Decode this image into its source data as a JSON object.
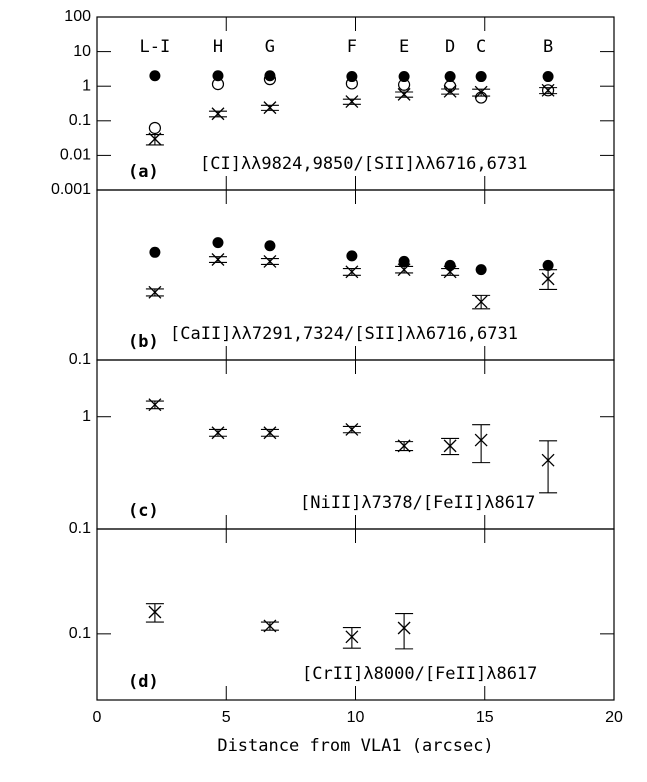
{
  "chart_data": [
    {
      "type": "scatter",
      "log_y": true,
      "xlim": [
        0,
        20
      ],
      "xticks": [
        0,
        5,
        10,
        15,
        20
      ],
      "ylim": [
        0.001,
        100
      ],
      "yticks": [
        0.001,
        0.01,
        0.1,
        1,
        10,
        100
      ],
      "panel_label": "(a)",
      "annotation": "[CI]λλ9824,9850/[SII]λλ6716,6731",
      "x": [
        2.24,
        4.68,
        6.69,
        9.86,
        11.88,
        13.66,
        14.86,
        17.45
      ],
      "point_labels": [
        "L-I",
        "H",
        "G",
        "F",
        "E",
        "D",
        "C",
        "B"
      ],
      "series": [
        {
          "marker": "filled",
          "color": "#000000",
          "values": [
            2,
            2,
            2,
            1.9,
            1.9,
            1.9,
            1.9,
            1.9
          ]
        },
        {
          "marker": "open",
          "color": "#000000",
          "values": [
            0.062,
            1.15,
            1.6,
            1.2,
            1.1,
            1,
            0.47,
            0.76
          ]
        },
        {
          "marker": "cross",
          "color": "#000000",
          "values": [
            0.03,
            0.16,
            0.24,
            0.36,
            0.58,
            0.71,
            0.67,
            0.76
          ],
          "errors": [
            0.01,
            0.03,
            0.04,
            0.06,
            0.1,
            0.12,
            0.15,
            0.15
          ]
        }
      ]
    },
    {
      "type": "scatter",
      "log_y": true,
      "xlim": [
        0,
        20
      ],
      "xticks": [
        0,
        5,
        10,
        15,
        20
      ],
      "ylim": [
        0.1,
        1
      ],
      "yticks": [
        0.1
      ],
      "panel_label": "(b)",
      "annotation": "[CaII]λλ7291,7324/[SII]λλ6716,6731",
      "x": [
        2.24,
        4.68,
        6.69,
        9.86,
        11.88,
        13.66,
        14.86,
        17.45
      ],
      "series": [
        {
          "marker": "filled",
          "color": "#000000",
          "values": [
            0.43,
            0.49,
            0.47,
            0.41,
            0.38,
            0.36,
            0.34,
            0.36
          ]
        },
        {
          "marker": "cross",
          "color": "#000000",
          "values": [
            0.25,
            0.39,
            0.38,
            0.33,
            0.34,
            0.33,
            0.22,
            0.3
          ],
          "errors": [
            0.012,
            0.015,
            0.015,
            0.015,
            0.015,
            0.015,
            0.02,
            0.04
          ]
        }
      ]
    },
    {
      "type": "scatter",
      "log_y": true,
      "xlim": [
        0,
        20
      ],
      "xticks": [
        0,
        5,
        10,
        15,
        20
      ],
      "ylim": [
        0.1,
        3.2
      ],
      "yticks": [
        0.1,
        1
      ],
      "panel_label": "(c)",
      "annotation": "[NiII]λ7378/[FeII]λ8617",
      "x": [
        2.24,
        4.68,
        6.69,
        9.86,
        11.88,
        13.66,
        14.86,
        17.45
      ],
      "series": [
        {
          "marker": "cross",
          "color": "#000000",
          "values": [
            1.28,
            0.72,
            0.72,
            0.77,
            0.55,
            0.55,
            0.62,
            0.41
          ],
          "errors": [
            0.1,
            0.05,
            0.05,
            0.05,
            0.05,
            0.09,
            0.23,
            0.2
          ]
        }
      ]
    },
    {
      "type": "scatter",
      "log_y": true,
      "xlim": [
        0,
        20
      ],
      "xticks": [
        0,
        5,
        10,
        15,
        20
      ],
      "ylim": [
        0.025,
        0.9
      ],
      "yticks": [
        0.1
      ],
      "panel_label": "(d)",
      "annotation": "[CrII]λ8000/[FeII]λ8617",
      "xlabel": "Distance from VLA1 (arcsec)",
      "x": [
        2.24,
        6.69,
        9.86,
        11.88
      ],
      "series": [
        {
          "marker": "cross",
          "color": "#000000",
          "values": [
            0.158,
            0.118,
            0.094,
            0.113
          ],
          "errors": [
            0.03,
            0.01,
            0.02,
            0.04
          ]
        }
      ]
    }
  ]
}
